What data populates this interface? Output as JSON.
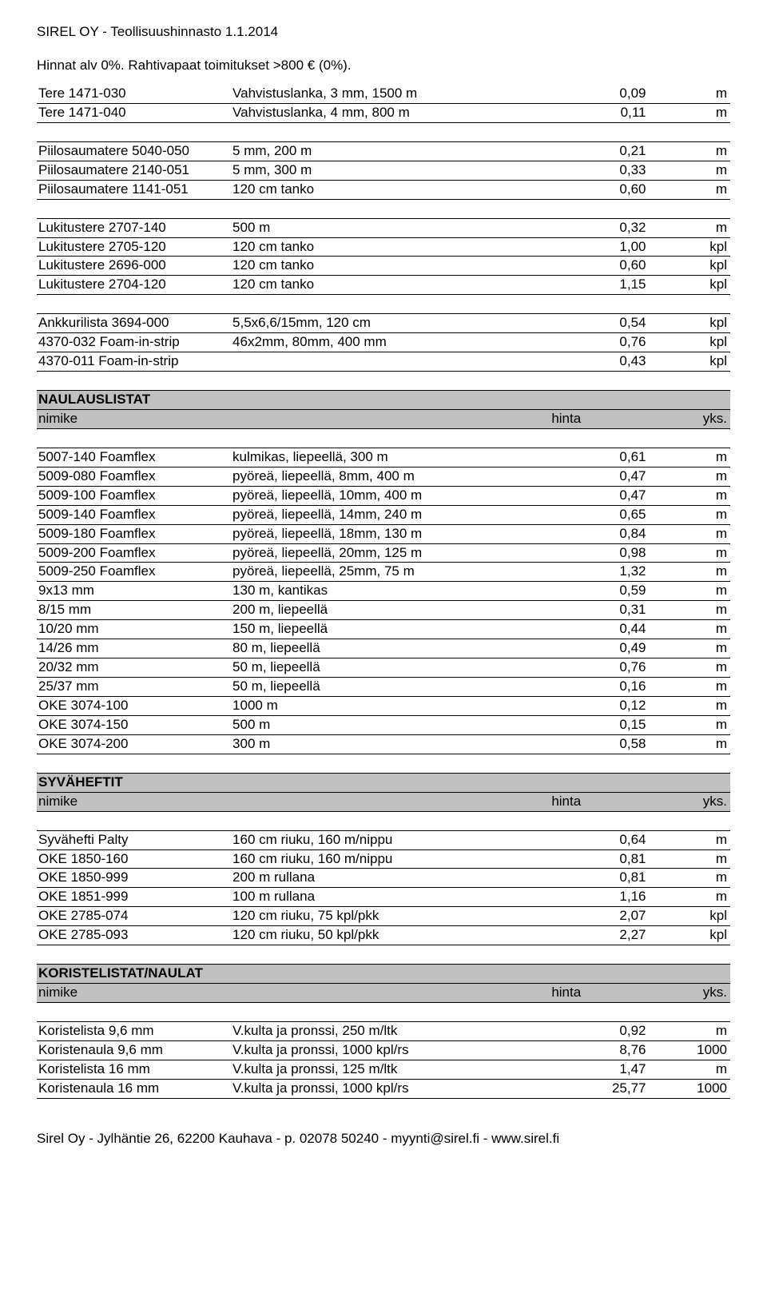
{
  "header": {
    "title": "SIREL OY - Teollisuushinnasto 1.1.2014",
    "subtitle": "Hinnat alv 0%. Rahtivapaat toimitukset >800 € (0%)."
  },
  "groups": [
    {
      "type": "data",
      "rows": [
        [
          "Tere 1471-030",
          "Vahvistuslanka, 3 mm, 1500 m",
          "0,09",
          "m"
        ],
        [
          "Tere 1471-040",
          "Vahvistuslanka, 4 mm, 800 m",
          "0,11",
          "m"
        ]
      ]
    },
    {
      "type": "spacer"
    },
    {
      "type": "data",
      "rows": [
        [
          "Piilosaumatere 5040-050",
          "5 mm, 200 m",
          "0,21",
          "m"
        ],
        [
          "Piilosaumatere 2140-051",
          "5 mm, 300 m",
          "0,33",
          "m"
        ],
        [
          "Piilosaumatere 1141-051",
          "120 cm tanko",
          "0,60",
          "m"
        ]
      ]
    },
    {
      "type": "spacer"
    },
    {
      "type": "data",
      "rows": [
        [
          "Lukitustere 2707-140",
          "500 m",
          "0,32",
          "m"
        ],
        [
          "Lukitustere 2705-120",
          "120 cm tanko",
          "1,00",
          "kpl"
        ],
        [
          "Lukitustere 2696-000",
          "120 cm tanko",
          "0,60",
          "kpl"
        ],
        [
          "Lukitustere 2704-120",
          "120 cm tanko",
          "1,15",
          "kpl"
        ]
      ]
    },
    {
      "type": "spacer"
    },
    {
      "type": "data",
      "rows": [
        [
          "Ankkurilista 3694-000",
          "5,5x6,6/15mm, 120 cm",
          "0,54",
          "kpl"
        ],
        [
          "4370-032 Foam-in-strip",
          "46x2mm, 80mm, 400 mm",
          "0,76",
          "kpl"
        ],
        [
          "4370-011 Foam-in-strip",
          "",
          "0,43",
          "kpl"
        ]
      ]
    },
    {
      "type": "spacer"
    },
    {
      "type": "section",
      "title": "NAULAUSLISTAT",
      "col1": "nimike",
      "col3": "hinta",
      "col4": "yks."
    },
    {
      "type": "spacer"
    },
    {
      "type": "data",
      "rows": [
        [
          "5007-140 Foamflex",
          "kulmikas, liepeellä, 300 m",
          "0,61",
          "m"
        ],
        [
          "5009-080 Foamflex",
          "pyöreä, liepeellä, 8mm, 400 m",
          "0,47",
          "m"
        ],
        [
          "5009-100 Foamflex",
          "pyöreä, liepeellä, 10mm, 400 m",
          "0,47",
          "m"
        ],
        [
          "5009-140 Foamflex",
          "pyöreä, liepeellä, 14mm, 240 m",
          "0,65",
          "m"
        ],
        [
          "5009-180 Foamflex",
          "pyöreä, liepeellä, 18mm, 130 m",
          "0,84",
          "m"
        ],
        [
          "5009-200 Foamflex",
          "pyöreä, liepeellä, 20mm, 125 m",
          "0,98",
          "m"
        ],
        [
          "5009-250 Foamflex",
          "pyöreä, liepeellä, 25mm, 75 m",
          "1,32",
          "m"
        ],
        [
          "9x13 mm",
          "130 m, kantikas",
          "0,59",
          "m"
        ],
        [
          "8/15 mm",
          "200 m, liepeellä",
          "0,31",
          "m"
        ],
        [
          "10/20 mm",
          "150 m, liepeellä",
          "0,44",
          "m"
        ],
        [
          "14/26 mm",
          "80 m, liepeellä",
          "0,49",
          "m"
        ],
        [
          "20/32 mm",
          "50 m, liepeellä",
          "0,76",
          "m"
        ],
        [
          "25/37 mm",
          "50 m, liepeellä",
          "0,16",
          "m"
        ],
        [
          "OKE 3074-100",
          "1000 m",
          "0,12",
          "m"
        ],
        [
          "OKE 3074-150",
          "500 m",
          "0,15",
          "m"
        ],
        [
          "OKE 3074-200",
          "300 m",
          "0,58",
          "m"
        ]
      ]
    },
    {
      "type": "spacer"
    },
    {
      "type": "section",
      "title": "SYVÄHEFTIT",
      "col1": "nimike",
      "col3": "hinta",
      "col4": "yks."
    },
    {
      "type": "spacer"
    },
    {
      "type": "data",
      "rows": [
        [
          "Syvähefti Palty",
          "160 cm riuku, 160 m/nippu",
          "0,64",
          "m"
        ],
        [
          "OKE 1850-160",
          "160 cm riuku, 160 m/nippu",
          "0,81",
          "m"
        ],
        [
          "OKE 1850-999",
          "200 m rullana",
          "0,81",
          "m"
        ],
        [
          "OKE 1851-999",
          "100 m rullana",
          "1,16",
          "m"
        ],
        [
          "OKE 2785-074",
          "120 cm riuku, 75 kpl/pkk",
          "2,07",
          "kpl"
        ],
        [
          "OKE 2785-093",
          "120 cm riuku, 50 kpl/pkk",
          "2,27",
          "kpl"
        ]
      ]
    },
    {
      "type": "spacer"
    },
    {
      "type": "section",
      "title": "KORISTELISTAT/NAULAT",
      "col1": "nimike",
      "col3": "hinta",
      "col4": "yks."
    },
    {
      "type": "spacer"
    },
    {
      "type": "data",
      "rows": [
        [
          "Koristelista 9,6 mm",
          "V.kulta ja pronssi, 250 m/ltk",
          "0,92",
          "m"
        ],
        [
          "Koristenaula 9,6 mm",
          "V.kulta ja pronssi, 1000 kpl/rs",
          "8,76",
          "1000"
        ],
        [
          "Koristelista 16 mm",
          "V.kulta ja pronssi, 125 m/ltk",
          "1,47",
          "m"
        ],
        [
          "Koristenaula 16 mm",
          "V.kulta ja pronssi, 1000 kpl/rs",
          "25,77",
          "1000"
        ]
      ]
    }
  ],
  "footer": "Sirel Oy - Jylhäntie 26, 62200 Kauhava - p. 02078 50240 - myynti@sirel.fi - www.sirel.fi"
}
